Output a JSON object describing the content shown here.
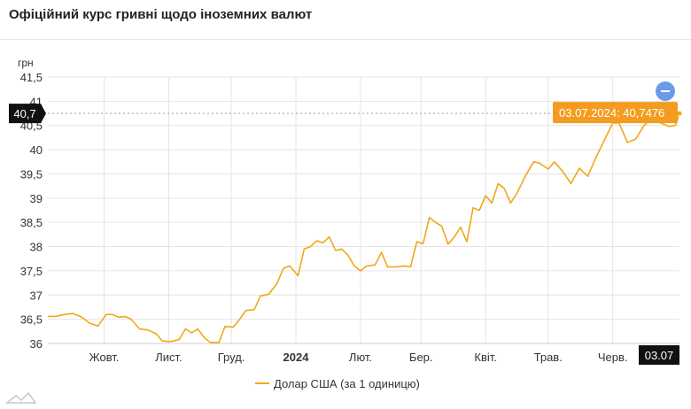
{
  "title": "Офіційний курс гривні щодо іноземних валют",
  "colors": {
    "series": "#f0a818",
    "tooltip_bg": "#f39c1f",
    "crosshair_label_bg": "#111111",
    "zoom_button": "#6b9ae8"
  },
  "icons": {
    "zoom_out": "minus-circle-icon",
    "logo": "logo-icon"
  },
  "chart_data": {
    "type": "line",
    "y_unit_label": "грн",
    "ylim": [
      36,
      41.5
    ],
    "y_ticks": [
      "36",
      "36,5",
      "37",
      "37,5",
      "38",
      "38,5",
      "39",
      "39,5",
      "40",
      "40,5",
      "41",
      "41,5"
    ],
    "y_tick_values": [
      36,
      36.5,
      37,
      37.5,
      38,
      38.5,
      39,
      39.5,
      40,
      40.5,
      41,
      41.5
    ],
    "grid": true,
    "legend_position": "bottom-center",
    "x_ticks": [
      {
        "label": "Жовт.",
        "date": "2023-10-01",
        "bold": false
      },
      {
        "label": "Лист.",
        "date": "2023-11-01",
        "bold": false
      },
      {
        "label": "Груд.",
        "date": "2023-12-01",
        "bold": false
      },
      {
        "label": "2024",
        "date": "2024-01-01",
        "bold": true
      },
      {
        "label": "Лют.",
        "date": "2024-02-01",
        "bold": false
      },
      {
        "label": "Бер.",
        "date": "2024-03-01",
        "bold": false
      },
      {
        "label": "Квіт.",
        "date": "2024-04-01",
        "bold": false
      },
      {
        "label": "Трав.",
        "date": "2024-05-01",
        "bold": false
      },
      {
        "label": "Черв.",
        "date": "2024-06-01",
        "bold": false
      }
    ],
    "x_range": [
      "2023-09-04",
      "2024-07-03"
    ],
    "series": [
      {
        "name": "Долар США (за 1 одиницю)",
        "points": [
          [
            "2023-09-04",
            36.56
          ],
          [
            "2023-09-08",
            36.56
          ],
          [
            "2023-09-12",
            36.6
          ],
          [
            "2023-09-16",
            36.62
          ],
          [
            "2023-09-20",
            36.55
          ],
          [
            "2023-09-24",
            36.42
          ],
          [
            "2023-09-28",
            36.36
          ],
          [
            "2023-10-02",
            36.6
          ],
          [
            "2023-10-05",
            36.6
          ],
          [
            "2023-10-08",
            36.54
          ],
          [
            "2023-10-11",
            36.56
          ],
          [
            "2023-10-14",
            36.5
          ],
          [
            "2023-10-18",
            36.3
          ],
          [
            "2023-10-22",
            36.28
          ],
          [
            "2023-10-26",
            36.2
          ],
          [
            "2023-10-29",
            36.05
          ],
          [
            "2023-11-02",
            36.04
          ],
          [
            "2023-11-06",
            36.08
          ],
          [
            "2023-11-09",
            36.3
          ],
          [
            "2023-11-12",
            36.22
          ],
          [
            "2023-11-15",
            36.3
          ],
          [
            "2023-11-18",
            36.12
          ],
          [
            "2023-11-21",
            36.02
          ],
          [
            "2023-11-25",
            36.02
          ],
          [
            "2023-11-28",
            36.35
          ],
          [
            "2023-12-02",
            36.34
          ],
          [
            "2023-12-05",
            36.5
          ],
          [
            "2023-12-08",
            36.68
          ],
          [
            "2023-12-12",
            36.7
          ],
          [
            "2023-12-15",
            36.98
          ],
          [
            "2023-12-19",
            37.02
          ],
          [
            "2023-12-23",
            37.24
          ],
          [
            "2023-12-26",
            37.55
          ],
          [
            "2023-12-29",
            37.6
          ],
          [
            "2024-01-02",
            37.4
          ],
          [
            "2024-01-05",
            37.95
          ],
          [
            "2024-01-08",
            38.0
          ],
          [
            "2024-01-11",
            38.12
          ],
          [
            "2024-01-14",
            38.08
          ],
          [
            "2024-01-17",
            38.2
          ],
          [
            "2024-01-20",
            37.92
          ],
          [
            "2024-01-23",
            37.95
          ],
          [
            "2024-01-26",
            37.82
          ],
          [
            "2024-01-29",
            37.6
          ],
          [
            "2024-02-01",
            37.5
          ],
          [
            "2024-02-04",
            37.6
          ],
          [
            "2024-02-08",
            37.62
          ],
          [
            "2024-02-11",
            37.88
          ],
          [
            "2024-02-14",
            37.58
          ],
          [
            "2024-02-18",
            37.58
          ],
          [
            "2024-02-22",
            37.6
          ],
          [
            "2024-02-25",
            37.58
          ],
          [
            "2024-02-28",
            38.1
          ],
          [
            "2024-03-02",
            38.06
          ],
          [
            "2024-03-05",
            38.6
          ],
          [
            "2024-03-08",
            38.5
          ],
          [
            "2024-03-11",
            38.42
          ],
          [
            "2024-03-14",
            38.05
          ],
          [
            "2024-03-17",
            38.2
          ],
          [
            "2024-03-20",
            38.4
          ],
          [
            "2024-03-23",
            38.1
          ],
          [
            "2024-03-26",
            38.8
          ],
          [
            "2024-03-29",
            38.75
          ],
          [
            "2024-04-01",
            39.05
          ],
          [
            "2024-04-04",
            38.9
          ],
          [
            "2024-04-07",
            39.3
          ],
          [
            "2024-04-10",
            39.2
          ],
          [
            "2024-04-13",
            38.9
          ],
          [
            "2024-04-16",
            39.1
          ],
          [
            "2024-04-20",
            39.45
          ],
          [
            "2024-04-24",
            39.75
          ],
          [
            "2024-04-27",
            39.72
          ],
          [
            "2024-05-01",
            39.6
          ],
          [
            "2024-05-04",
            39.75
          ],
          [
            "2024-05-08",
            39.55
          ],
          [
            "2024-05-12",
            39.3
          ],
          [
            "2024-05-16",
            39.62
          ],
          [
            "2024-05-20",
            39.45
          ],
          [
            "2024-05-24",
            39.85
          ],
          [
            "2024-05-28",
            40.2
          ],
          [
            "2024-06-01",
            40.55
          ],
          [
            "2024-06-04",
            40.55
          ],
          [
            "2024-06-08",
            40.15
          ],
          [
            "2024-06-12",
            40.22
          ],
          [
            "2024-06-16",
            40.5
          ],
          [
            "2024-06-20",
            40.65
          ],
          [
            "2024-06-24",
            40.55
          ],
          [
            "2024-06-28",
            40.48
          ],
          [
            "2024-07-01",
            40.5
          ],
          [
            "2024-07-03",
            40.7476
          ]
        ]
      }
    ],
    "tooltip": {
      "date": "03.07.2024",
      "value": "40,7476",
      "text": "03.07.2024: 40,7476"
    },
    "crosshair_y_label": "40,7",
    "crosshair_x_label": "03.07"
  }
}
